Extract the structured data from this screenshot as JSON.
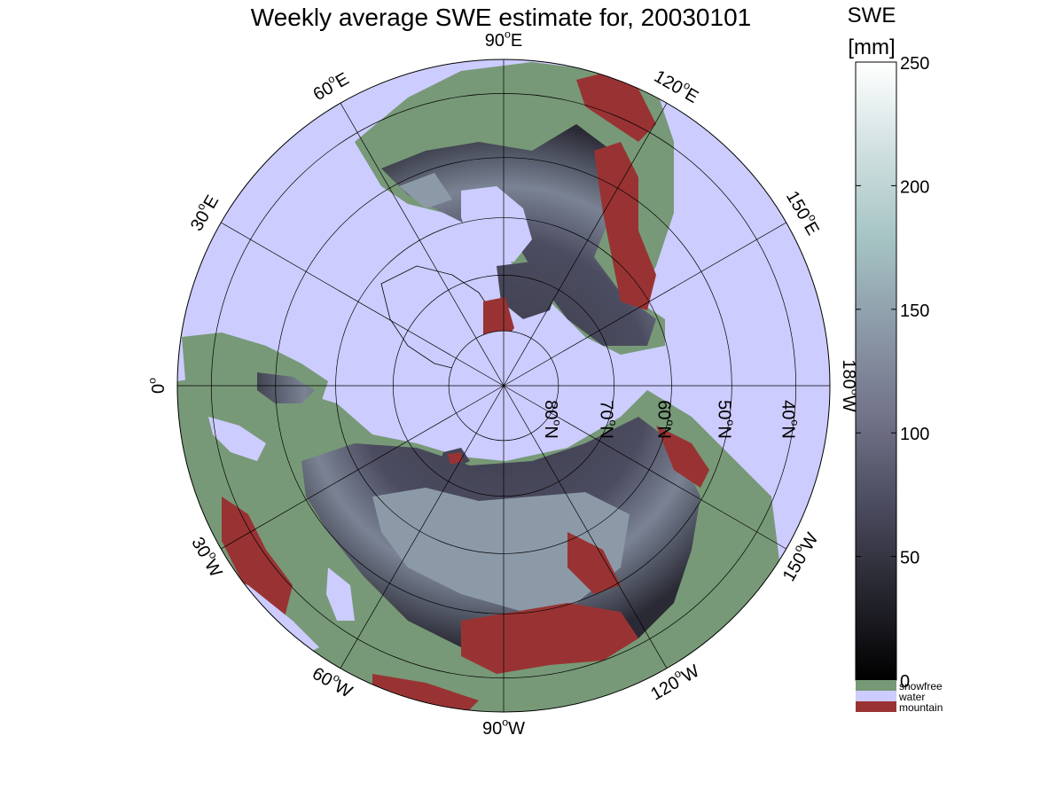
{
  "title": "Weekly average SWE estimate for, 20030101",
  "colorbar": {
    "title": "SWE",
    "unit": "[mm]",
    "ticks": [
      0,
      50,
      100,
      150,
      200,
      250
    ],
    "range": [
      0,
      250
    ],
    "gradient": [
      "#000000",
      "#26262f",
      "#4c4c60",
      "#73738a",
      "#8c9aa8",
      "#a6c4c4",
      "#d0e0e0",
      "#ffffff"
    ],
    "categories": [
      {
        "label": "snowfree",
        "color": "#779977"
      },
      {
        "label": "water",
        "color": "#ccccff"
      },
      {
        "label": "mountain",
        "color": "#993333"
      }
    ]
  },
  "map": {
    "projection": "polar stereographic, north pole",
    "colors": {
      "water": "#ccccff",
      "snowfree": "#779977",
      "mountain": "#993333",
      "snow_dark": "#25252f",
      "snow_mid": "#4c4c60",
      "snow_light": "#8c9aa8"
    },
    "meridians": [
      {
        "lon": 0,
        "label": "0",
        "sup": "o",
        "after": ""
      },
      {
        "lon": 30,
        "label": "30",
        "sup": "o",
        "after": "W"
      },
      {
        "lon": 60,
        "label": "60",
        "sup": "o",
        "after": "W"
      },
      {
        "lon": 90,
        "label": "90",
        "sup": "o",
        "after": "W"
      },
      {
        "lon": 120,
        "label": "120",
        "sup": "o",
        "after": "W"
      },
      {
        "lon": 150,
        "label": "150",
        "sup": "o",
        "after": "W"
      },
      {
        "lon": 180,
        "label": "180",
        "sup": "o",
        "after": "W"
      },
      {
        "lon": 210,
        "label": "150",
        "sup": "o",
        "after": "E"
      },
      {
        "lon": 240,
        "label": "120",
        "sup": "o",
        "after": "E"
      },
      {
        "lon": 270,
        "label": "90",
        "sup": "o",
        "after": "E"
      },
      {
        "lon": 300,
        "label": "60",
        "sup": "o",
        "after": "E"
      },
      {
        "lon": 330,
        "label": "30",
        "sup": "o",
        "after": "E"
      }
    ],
    "parallels": [
      {
        "lat": 80,
        "label": "80",
        "sup": "o",
        "after": "N"
      },
      {
        "lat": 70,
        "label": "70",
        "sup": "o",
        "after": "N"
      },
      {
        "lat": 60,
        "label": "60",
        "sup": "o",
        "after": "N"
      },
      {
        "lat": 50,
        "label": "50",
        "sup": "o",
        "after": "N"
      },
      {
        "lat": 40,
        "label": "40",
        "sup": "o",
        "after": "N"
      }
    ],
    "outer_lat": 35
  }
}
